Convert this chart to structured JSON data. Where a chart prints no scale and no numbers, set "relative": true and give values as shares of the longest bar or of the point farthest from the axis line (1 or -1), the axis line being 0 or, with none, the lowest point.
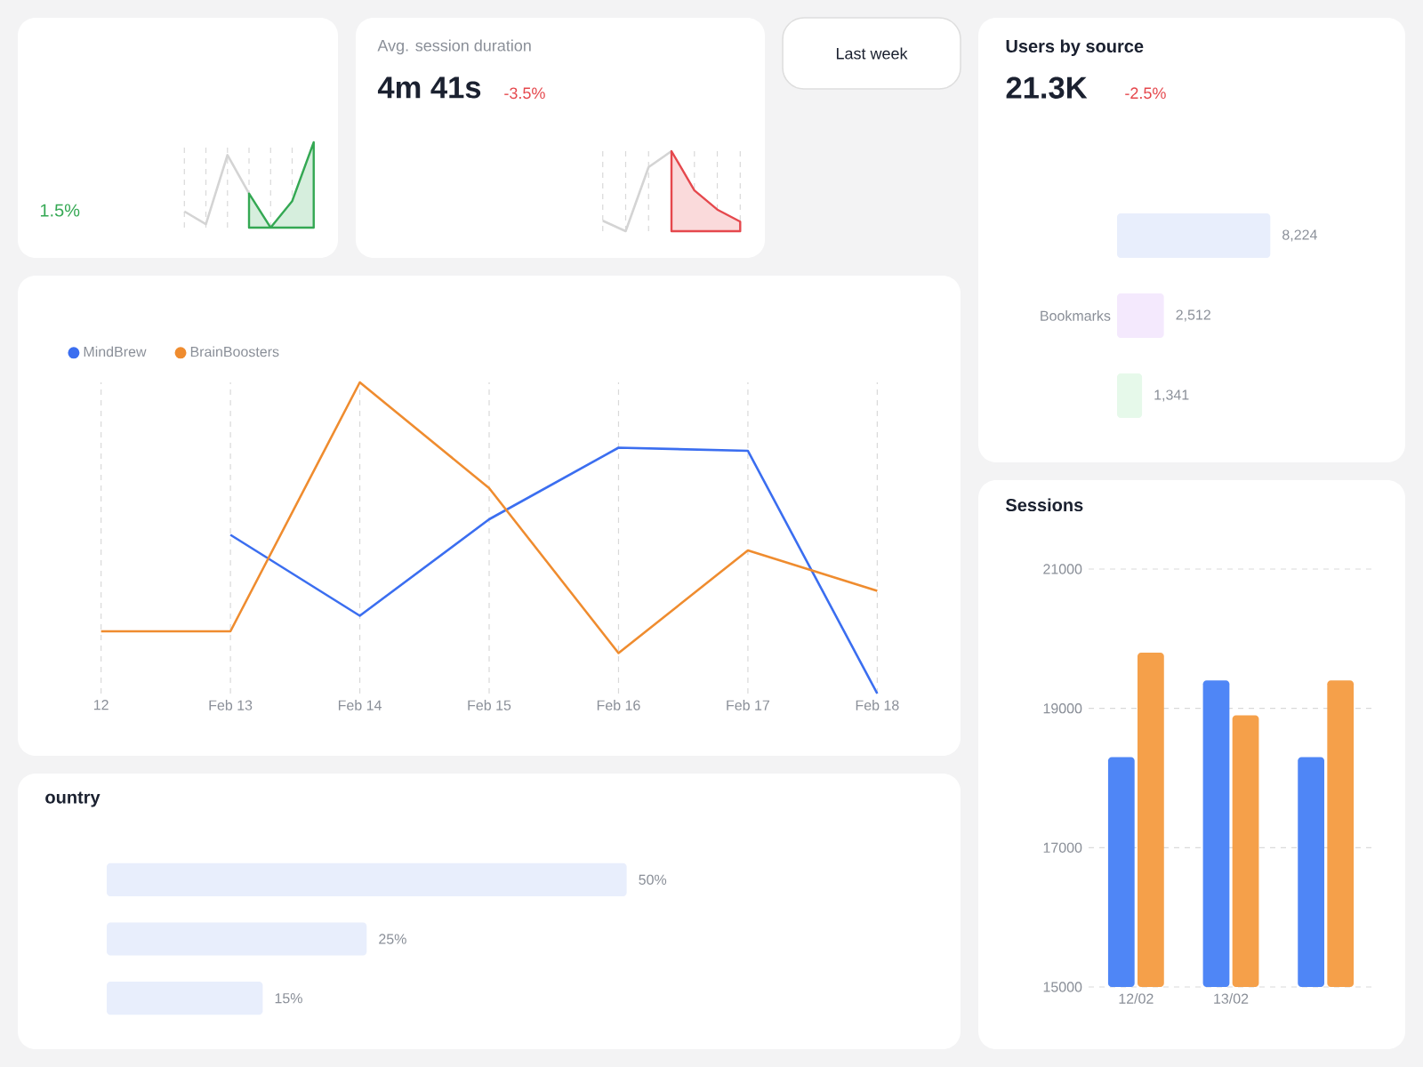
{
  "chart_data": [
    {
      "type": "line",
      "relative": true,
      "annotations": [
        "1.5%"
      ],
      "categories": [
        null,
        null,
        null,
        null,
        null,
        null,
        null
      ],
      "grid": "x",
      "tick_labels": false,
      "series": [
        {
          "color": "#d4d4d4",
          "values": [
            0.19,
            0.04,
            0.85,
            0.4,
            null,
            null,
            null
          ]
        },
        {
          "type": "area",
          "color": "#34a853",
          "values": [
            null,
            null,
            null,
            0.4,
            0,
            0.31,
            1
          ]
        }
      ]
    },
    {
      "type": "line",
      "relative": true,
      "title": "Avg. session duration",
      "subtitle": "4m 41s",
      "annotations": [
        "-3.5%"
      ],
      "categories": [
        null,
        null,
        null,
        null,
        null,
        null,
        null
      ],
      "grid": "x",
      "tick_labels": false,
      "series": [
        {
          "color": "#d4d4d4",
          "values": [
            0.13,
            0,
            0.8,
            1,
            null,
            null,
            null
          ]
        },
        {
          "type": "area",
          "color": "#e5484d",
          "values": [
            null,
            null,
            null,
            1,
            0.51,
            0.27,
            0.12
          ]
        }
      ]
    },
    {
      "type": "other",
      "annotations": [
        "Last week"
      ]
    },
    {
      "type": "bar",
      "orientation": "horizontal",
      "title": "Users by source",
      "subtitle": "21.3K",
      "annotations": [
        "-2.5%"
      ],
      "categories": [
        null,
        "Bookmarks",
        null
      ],
      "values": [
        8224,
        2512,
        1341
      ],
      "value_labels": [
        "8,224",
        "2,512",
        "1,341"
      ],
      "colors": [
        "#e8eefc",
        "#f4e9fd",
        "#e6f9ea"
      ],
      "tick_labels": "y"
    },
    {
      "type": "line",
      "relative": true,
      "categories": [
        "12",
        "Feb 13",
        "Feb 14",
        "Feb 15",
        "Feb 16",
        "Feb 17",
        "Feb 18"
      ],
      "series": [
        {
          "name": "MindBrew",
          "color": "#3b6ef0",
          "values": [
            null,
            0.51,
            0.25,
            0.56,
            0.79,
            0.78,
            0
          ]
        },
        {
          "name": "BrainBoosters",
          "color": "#ef8c2f",
          "values": [
            0.2,
            0.2,
            1,
            0.66,
            0.13,
            0.46,
            0.33
          ]
        }
      ],
      "grid": "x",
      "legend": "top left",
      "tick_labels": "x"
    },
    {
      "type": "bar",
      "orientation": "horizontal",
      "title": "ountry",
      "categories": [
        null,
        null,
        null
      ],
      "values": [
        50,
        25,
        15
      ],
      "value_labels": [
        "50%",
        "25%",
        "15%"
      ],
      "color": "#e8eefc",
      "tick_labels": false
    },
    {
      "type": "bar",
      "title": "Sessions",
      "categories": [
        "12/02",
        "13/02",
        null
      ],
      "series": [
        {
          "color": "#4f86f6",
          "values": [
            18300,
            19400,
            18300
          ]
        },
        {
          "color": "#f5a04a",
          "values": [
            19800,
            18900,
            19400
          ]
        }
      ],
      "ylim": [
        15000,
        21000
      ],
      "yticks": [
        15000,
        17000,
        19000,
        21000
      ],
      "grid": "y"
    }
  ]
}
